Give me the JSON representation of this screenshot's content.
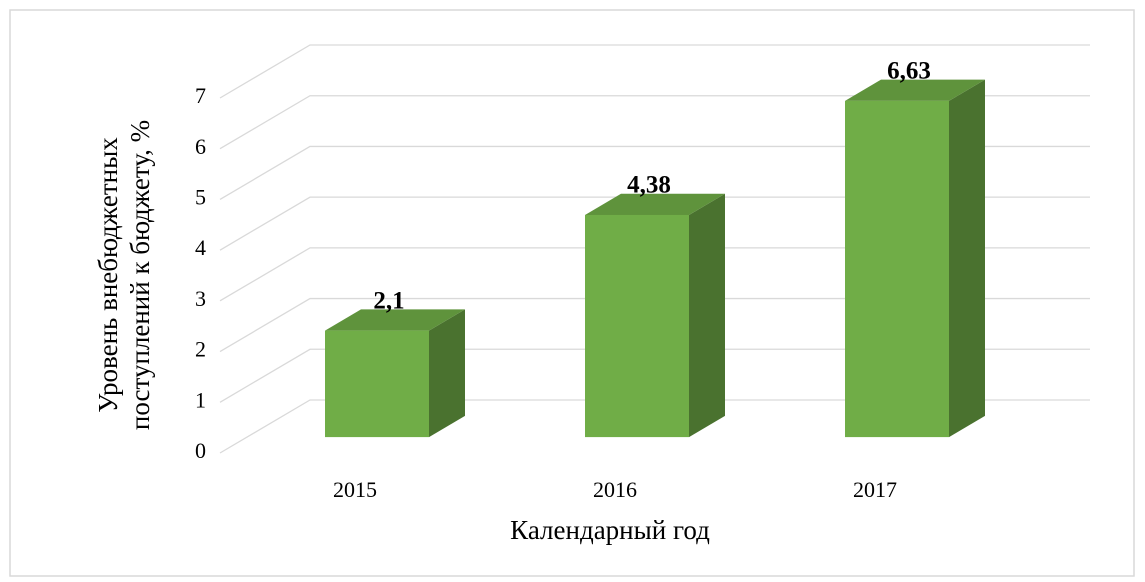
{
  "chart_data": {
    "type": "bar3d",
    "categories": [
      "2015",
      "2016",
      "2017"
    ],
    "values": [
      2.1,
      4.38,
      6.63
    ],
    "value_labels": [
      "2,1",
      "4,38",
      "6,63"
    ],
    "color": "#70ad47",
    "ylim": [
      0,
      7
    ],
    "yticks": [
      0,
      1,
      2,
      3,
      4,
      5,
      6,
      7
    ],
    "grid": true,
    "x_label": "Календарный год",
    "y_label": [
      "Уровень внебюджетных",
      "поступлений к бюджету, %"
    ]
  }
}
